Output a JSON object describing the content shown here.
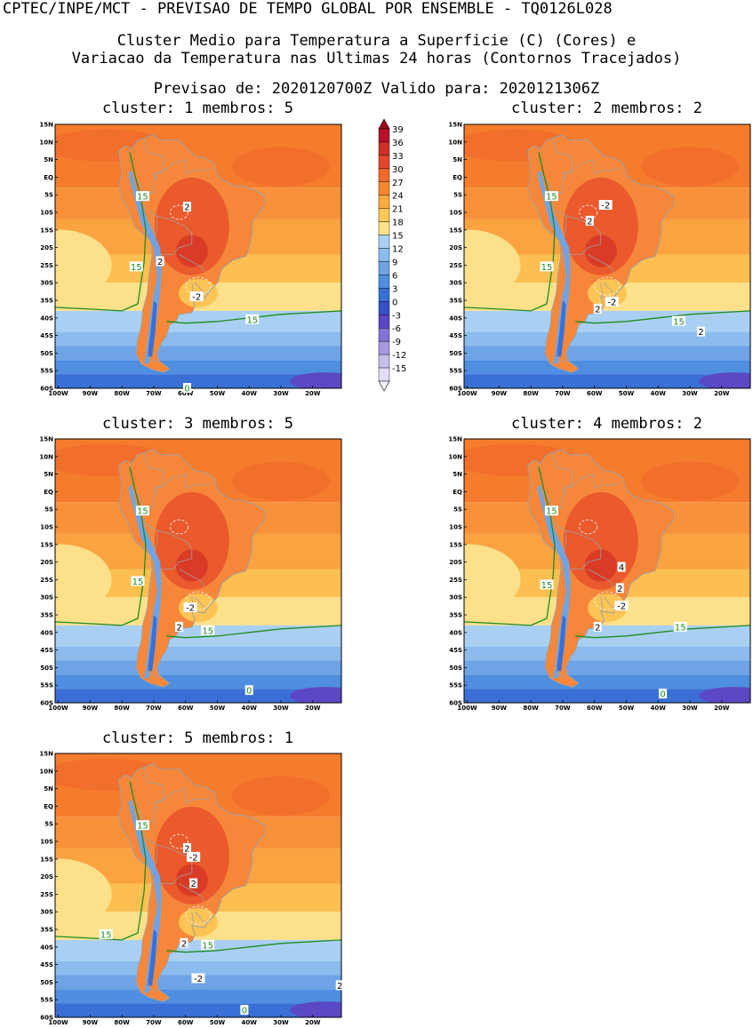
{
  "header": {
    "line1": "CPTEC/INPE/MCT - PREVISAO DE TEMPO GLOBAL POR ENSEMBLE - TQ0126L028",
    "line2": "Cluster Medio para Temperatura a Superficie (C) (Cores) e",
    "line3": "Variacao da Temperatura nas Ultimas 24 horas (Contornos Tracejados)",
    "line4": "Previsao de: 2020120700Z    Valido para: 2020121306Z"
  },
  "lat_labels": [
    "15N",
    "10N",
    "5N",
    "EQ",
    "5S",
    "10S",
    "15S",
    "20S",
    "25S",
    "30S",
    "35S",
    "40S",
    "45S",
    "50S",
    "55S",
    "60S"
  ],
  "lon_labels": [
    "100W",
    "90W",
    "80W",
    "70W",
    "60W",
    "50W",
    "40W",
    "30W",
    "20W"
  ],
  "colorbar": {
    "labels": [
      "39",
      "36",
      "33",
      "30",
      "27",
      "24",
      "21",
      "18",
      "15",
      "12",
      "9",
      "6",
      "3",
      "0",
      "-3",
      "-6",
      "-9",
      "-12",
      "-15"
    ],
    "colors": [
      "#b8122a",
      "#d12e28",
      "#e6462c",
      "#f06a2a",
      "#f5882c",
      "#fbaa3c",
      "#fcc957",
      "#fde28a",
      "#a9d0f2",
      "#8bbced",
      "#6ea4e6",
      "#4f8ee0",
      "#3a70d6",
      "#3551c8",
      "#5b48c4",
      "#8572d6",
      "#a797e4",
      "#c8bdef",
      "#e4dcf8"
    ]
  },
  "clusters": [
    {
      "title": "cluster: 1   membros: 5",
      "contour_labels": [
        {
          "t": "15",
          "lon": -73.5,
          "lat": -5.5,
          "c": "green"
        },
        {
          "t": "15",
          "lon": -75.5,
          "lat": -25.5,
          "c": "green"
        },
        {
          "t": "15",
          "lon": -39,
          "lat": -40.5,
          "c": "green"
        },
        {
          "t": "2",
          "lon": -59.5,
          "lat": -8.5,
          "c": "black"
        },
        {
          "t": "2",
          "lon": -68,
          "lat": -24,
          "c": "black"
        },
        {
          "t": "-2",
          "lon": -56.5,
          "lat": -34,
          "c": "black"
        },
        {
          "t": "0",
          "lon": -59.5,
          "lat": -60,
          "c": "green"
        }
      ]
    },
    {
      "title": "cluster: 2   membros: 2",
      "contour_labels": [
        {
          "t": "15",
          "lon": -73.5,
          "lat": -5.5,
          "c": "green"
        },
        {
          "t": "-2",
          "lon": -56.5,
          "lat": -8,
          "c": "black"
        },
        {
          "t": "2",
          "lon": -61.5,
          "lat": -12.5,
          "c": "black"
        },
        {
          "t": "15",
          "lon": -75,
          "lat": -25.5,
          "c": "green"
        },
        {
          "t": "-2",
          "lon": -54.5,
          "lat": -35.5,
          "c": "black"
        },
        {
          "t": "2",
          "lon": -59,
          "lat": -37.5,
          "c": "black"
        },
        {
          "t": "15",
          "lon": -33.5,
          "lat": -41,
          "c": "green"
        },
        {
          "t": "2",
          "lon": -26.5,
          "lat": -44,
          "c": "black"
        }
      ]
    },
    {
      "title": "cluster: 3   membros: 5",
      "contour_labels": [
        {
          "t": "15",
          "lon": -73.5,
          "lat": -5.5,
          "c": "green"
        },
        {
          "t": "15",
          "lon": -75,
          "lat": -25.5,
          "c": "green"
        },
        {
          "t": "-2",
          "lon": -58.5,
          "lat": -33,
          "c": "black"
        },
        {
          "t": "2",
          "lon": -62,
          "lat": -38.5,
          "c": "black"
        },
        {
          "t": "15",
          "lon": -53,
          "lat": -39.5,
          "c": "green"
        },
        {
          "t": "0",
          "lon": -40,
          "lat": -56.5,
          "c": "green"
        }
      ]
    },
    {
      "title": "cluster: 4   membros: 2",
      "contour_labels": [
        {
          "t": "15",
          "lon": -73.5,
          "lat": -5.5,
          "c": "green"
        },
        {
          "t": "4",
          "lon": -51.5,
          "lat": -21.5,
          "c": "black"
        },
        {
          "t": "2",
          "lon": -52,
          "lat": -27.5,
          "c": "black"
        },
        {
          "t": "15",
          "lon": -75,
          "lat": -26.5,
          "c": "green"
        },
        {
          "t": "-2",
          "lon": -51.5,
          "lat": -32.5,
          "c": "black"
        },
        {
          "t": "2",
          "lon": -59,
          "lat": -38.5,
          "c": "black"
        },
        {
          "t": "15",
          "lon": -33,
          "lat": -38.5,
          "c": "green"
        },
        {
          "t": "0",
          "lon": -38.5,
          "lat": -57.5,
          "c": "green"
        }
      ]
    },
    {
      "title": "cluster: 5   membros: 1",
      "contour_labels": [
        {
          "t": "15",
          "lon": -73.5,
          "lat": -5.5,
          "c": "green"
        },
        {
          "t": "2",
          "lon": -59.5,
          "lat": -12,
          "c": "black"
        },
        {
          "t": "-2",
          "lon": -57.5,
          "lat": -14.5,
          "c": "black"
        },
        {
          "t": "2",
          "lon": -57.5,
          "lat": -22,
          "c": "black"
        },
        {
          "t": "15",
          "lon": -85,
          "lat": -36.5,
          "c": "green"
        },
        {
          "t": "2",
          "lon": -60.5,
          "lat": -39,
          "c": "black"
        },
        {
          "t": "15",
          "lon": -53,
          "lat": -39.5,
          "c": "green"
        },
        {
          "t": "-2",
          "lon": -56,
          "lat": -49,
          "c": "black"
        },
        {
          "t": "2",
          "lon": -11.5,
          "lat": -51,
          "c": "black"
        },
        {
          "t": "0",
          "lon": -41.5,
          "lat": -58,
          "c": "green"
        }
      ]
    }
  ]
}
